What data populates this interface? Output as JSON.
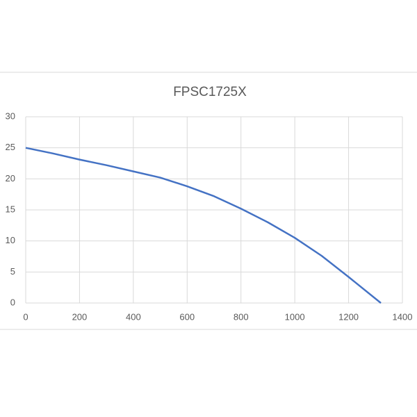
{
  "chart_data": {
    "type": "line",
    "title": "FPSC1725X",
    "x": [
      0,
      100,
      200,
      300,
      400,
      500,
      600,
      700,
      800,
      900,
      1000,
      1100,
      1200,
      1320
    ],
    "series": [
      {
        "color": "#4472c4",
        "values": [
          25,
          24.1,
          23.1,
          22.2,
          21.2,
          20.2,
          18.8,
          17.2,
          15.2,
          13.0,
          10.5,
          7.6,
          4.2,
          0
        ]
      }
    ],
    "xlim": [
      0,
      1400
    ],
    "xticks": [
      0,
      200,
      400,
      600,
      800,
      1000,
      1200,
      1400
    ],
    "ylim": [
      0,
      30
    ],
    "yticks": [
      0,
      5,
      10,
      15,
      20,
      25,
      30
    ],
    "grid": true
  }
}
